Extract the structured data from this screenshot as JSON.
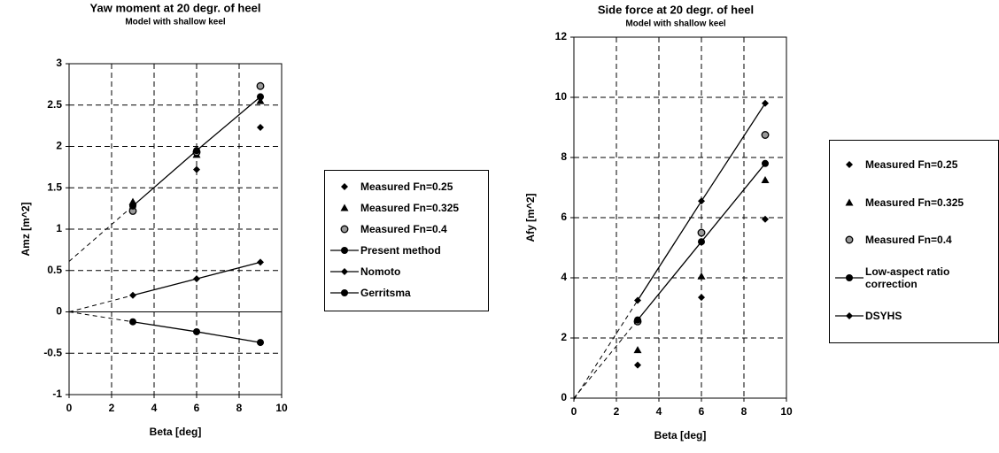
{
  "chart_data": [
    {
      "type": "scatter",
      "title": "Yaw moment at 20 degr. of heel",
      "subtitle": "Model with shallow keel",
      "x_label": "Beta [deg]",
      "y_label": "Amz [m^2]",
      "x": [
        3,
        6,
        9
      ],
      "xlim": [
        0,
        10
      ],
      "xticks": [
        0,
        2,
        4,
        6,
        8,
        10
      ],
      "ylim": [
        -1,
        3
      ],
      "yticks": [
        -1,
        -0.5,
        0,
        0.5,
        1,
        1.5,
        2,
        2.5,
        3
      ],
      "grid": true,
      "legend": "right",
      "dashed_extension": true,
      "series": [
        {
          "name": "Measured Fn=0.25",
          "color": "#000000",
          "marker": "diamond",
          "line": false,
          "values": [
            1.3,
            1.72,
            2.23
          ]
        },
        {
          "name": "Measured Fn=0.325",
          "color": "#000000",
          "marker": "triangle",
          "line": false,
          "values": [
            1.33,
            1.9,
            2.55
          ]
        },
        {
          "name": "Measured Fn=0.4",
          "color": "#000000",
          "marker": "open-circle",
          "line": false,
          "values": [
            1.22,
            1.93,
            2.73
          ]
        },
        {
          "name": "Present method",
          "color": "#000000",
          "marker": "circle",
          "line": true,
          "values": [
            1.28,
            1.95,
            2.6
          ]
        },
        {
          "name": "Nomoto",
          "color": "#000000",
          "marker": "diamond",
          "line": true,
          "values": [
            0.2,
            0.4,
            0.6
          ]
        },
        {
          "name": "Gerritsma",
          "color": "#000000",
          "marker": "circle",
          "line": true,
          "values": [
            -0.12,
            -0.24,
            -0.37
          ]
        }
      ]
    },
    {
      "type": "scatter",
      "title": "Side force at 20 degr. of heel",
      "subtitle": "Model with shallow keel",
      "x_label": "Beta [deg]",
      "y_label": "Afy [m^2]",
      "x": [
        3,
        6,
        9
      ],
      "xlim": [
        0,
        10
      ],
      "xticks": [
        0,
        2,
        4,
        6,
        8,
        10
      ],
      "ylim": [
        0,
        12
      ],
      "yticks": [
        0,
        2,
        4,
        6,
        8,
        10,
        12
      ],
      "grid": true,
      "legend": "right",
      "dashed_extension": true,
      "series": [
        {
          "name": "Measured Fn=0.25",
          "color": "#000000",
          "marker": "diamond",
          "line": false,
          "values": [
            1.1,
            3.35,
            5.95
          ]
        },
        {
          "name": "Measured Fn=0.325",
          "color": "#000000",
          "marker": "triangle",
          "line": false,
          "values": [
            1.6,
            4.05,
            7.25
          ]
        },
        {
          "name": "Measured Fn=0.4",
          "color": "#000000",
          "marker": "open-circle",
          "line": false,
          "values": [
            2.55,
            5.5,
            8.75
          ]
        },
        {
          "name": "Low-aspect ratio correction",
          "color": "#000000",
          "marker": "circle",
          "line": true,
          "values": [
            2.6,
            5.2,
            7.8
          ]
        },
        {
          "name": "DSYHS",
          "color": "#000000",
          "marker": "diamond",
          "line": true,
          "values": [
            3.25,
            6.55,
            9.8
          ]
        }
      ]
    }
  ]
}
